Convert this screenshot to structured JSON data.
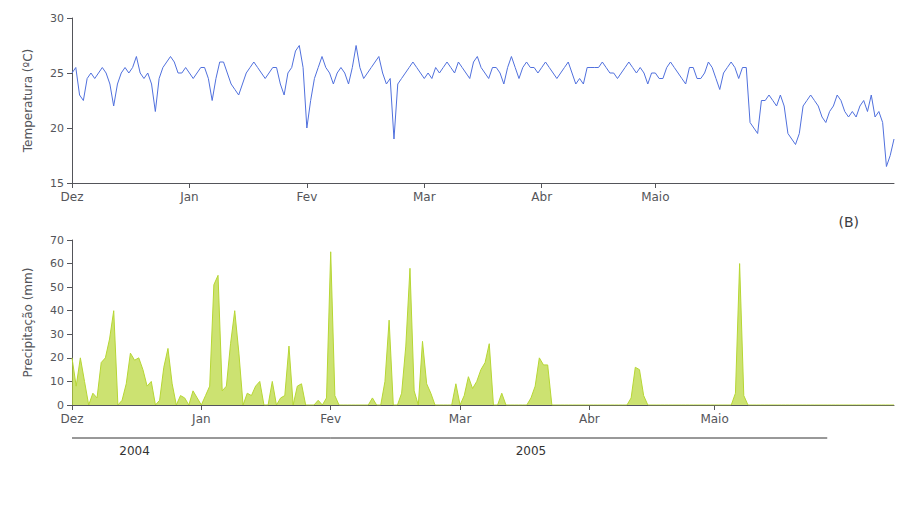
{
  "chart_data": [
    {
      "type": "line",
      "ylabel": "Temperatura (ºC)",
      "ylim": [
        15,
        30
      ],
      "yticks": [
        15,
        20,
        25,
        30
      ],
      "grid": false,
      "categories": [
        "Dez",
        null,
        null,
        null,
        null,
        null,
        null,
        null,
        null,
        null,
        null,
        null,
        null,
        null,
        null,
        null,
        null,
        null,
        null,
        null,
        null,
        null,
        null,
        null,
        null,
        null,
        null,
        null,
        null,
        null,
        null,
        "Jan",
        null,
        null,
        null,
        null,
        null,
        null,
        null,
        null,
        null,
        null,
        null,
        null,
        null,
        null,
        null,
        null,
        null,
        null,
        null,
        null,
        null,
        null,
        null,
        null,
        null,
        null,
        null,
        null,
        null,
        null,
        "Fev",
        null,
        null,
        null,
        null,
        null,
        null,
        null,
        null,
        null,
        null,
        null,
        null,
        null,
        null,
        null,
        null,
        null,
        null,
        null,
        null,
        null,
        null,
        null,
        null,
        null,
        null,
        null,
        null,
        null,
        null,
        "Mar",
        null,
        null,
        null,
        null,
        null,
        null,
        null,
        null,
        null,
        null,
        null,
        null,
        null,
        null,
        null,
        null,
        null,
        null,
        null,
        null,
        null,
        null,
        null,
        null,
        null,
        null,
        null,
        null,
        null,
        null,
        "Abr",
        null,
        null,
        null,
        null,
        null,
        null,
        null,
        null,
        null,
        null,
        null,
        null,
        null,
        null,
        null,
        null,
        null,
        null,
        null,
        null,
        null,
        null,
        null,
        null,
        null,
        null,
        null,
        null,
        null,
        "Maio",
        null,
        null,
        null,
        null,
        null,
        null,
        null,
        null,
        null,
        null,
        null,
        null,
        null,
        null,
        null,
        null,
        null,
        null,
        null,
        null,
        null,
        null,
        null,
        null,
        null,
        null,
        null,
        null,
        null,
        null,
        null,
        null,
        null,
        null,
        null,
        null,
        null,
        null,
        null,
        null,
        null,
        null,
        null,
        null,
        null,
        null,
        null,
        null,
        null,
        null,
        null,
        null,
        null,
        null,
        null,
        null,
        null,
        null,
        null,
        null,
        null,
        null,
        null
      ],
      "values": [
        25.0,
        25.5,
        23.0,
        22.5,
        24.5,
        25.0,
        24.5,
        25.0,
        25.5,
        25.0,
        24.0,
        22.0,
        24.0,
        25.0,
        25.5,
        25.0,
        25.5,
        26.5,
        25.0,
        24.5,
        25.0,
        24.0,
        21.5,
        24.5,
        25.5,
        26.0,
        26.5,
        26.0,
        25.0,
        25.0,
        25.5,
        25.0,
        24.5,
        25.0,
        25.5,
        25.5,
        24.5,
        22.5,
        24.5,
        26.0,
        26.0,
        25.0,
        24.0,
        23.5,
        23.0,
        24.0,
        25.0,
        25.5,
        26.0,
        25.5,
        25.0,
        24.5,
        25.0,
        25.5,
        25.5,
        24.0,
        23.0,
        25.0,
        25.5,
        27.0,
        27.5,
        25.5,
        20.0,
        22.5,
        24.5,
        25.5,
        26.5,
        25.5,
        25.0,
        24.0,
        25.0,
        25.5,
        25.0,
        24.0,
        25.5,
        27.5,
        25.5,
        24.5,
        25.0,
        25.5,
        26.0,
        26.5,
        25.0,
        24.0,
        24.5,
        19.0,
        24.0,
        24.5,
        25.0,
        25.5,
        26.0,
        25.5,
        25.0,
        24.5,
        25.0,
        24.5,
        25.5,
        25.0,
        25.5,
        26.0,
        25.5,
        25.0,
        26.0,
        25.5,
        25.0,
        24.5,
        26.0,
        26.5,
        25.5,
        25.0,
        24.5,
        25.5,
        25.5,
        25.0,
        24.0,
        25.5,
        26.5,
        25.5,
        24.5,
        25.5,
        26.0,
        25.5,
        25.5,
        25.0,
        25.5,
        26.0,
        25.5,
        25.0,
        24.5,
        25.0,
        25.5,
        26.0,
        25.0,
        24.0,
        24.5,
        24.0,
        25.5,
        25.5,
        25.5,
        25.5,
        26.0,
        25.5,
        25.0,
        25.0,
        24.5,
        25.0,
        25.5,
        26.0,
        25.5,
        25.0,
        25.5,
        25.0,
        24.0,
        25.0,
        25.0,
        24.5,
        24.5,
        25.5,
        26.0,
        25.5,
        25.0,
        24.5,
        24.0,
        25.5,
        25.5,
        24.5,
        24.5,
        25.0,
        26.0,
        25.5,
        24.5,
        23.5,
        25.0,
        25.5,
        26.0,
        25.5,
        24.5,
        25.5,
        25.5,
        20.5,
        20.0,
        19.5,
        22.5,
        22.5,
        23.0,
        22.5,
        22.0,
        23.0,
        22.0,
        19.5,
        19.0,
        18.5,
        19.5,
        22.0,
        22.5,
        23.0,
        22.5,
        22.0,
        21.0,
        20.5,
        21.5,
        22.0,
        23.0,
        22.5,
        21.5,
        21.0,
        21.5,
        21.0,
        22.0,
        22.5,
        21.5,
        23.0,
        21.0,
        21.5,
        20.5,
        16.5,
        17.5,
        19.0
      ]
    },
    {
      "type": "area",
      "title": "(B)",
      "ylabel": "Precipitação (mm)",
      "ylim": [
        0,
        70
      ],
      "yticks": [
        0,
        10,
        20,
        30,
        40,
        50,
        60,
        70
      ],
      "grid": false,
      "categories": [
        "Dez",
        null,
        null,
        null,
        null,
        null,
        null,
        null,
        null,
        null,
        null,
        null,
        null,
        null,
        null,
        null,
        null,
        null,
        null,
        null,
        null,
        null,
        null,
        null,
        null,
        null,
        null,
        null,
        null,
        null,
        null,
        "Jan",
        null,
        null,
        null,
        null,
        null,
        null,
        null,
        null,
        null,
        null,
        null,
        null,
        null,
        null,
        null,
        null,
        null,
        null,
        null,
        null,
        null,
        null,
        null,
        null,
        null,
        null,
        null,
        null,
        null,
        null,
        "Fev",
        null,
        null,
        null,
        null,
        null,
        null,
        null,
        null,
        null,
        null,
        null,
        null,
        null,
        null,
        null,
        null,
        null,
        null,
        null,
        null,
        null,
        null,
        null,
        null,
        null,
        null,
        null,
        null,
        null,
        null,
        "Mar",
        null,
        null,
        null,
        null,
        null,
        null,
        null,
        null,
        null,
        null,
        null,
        null,
        null,
        null,
        null,
        null,
        null,
        null,
        null,
        null,
        null,
        null,
        null,
        null,
        null,
        null,
        null,
        null,
        null,
        null,
        "Abr",
        null,
        null,
        null,
        null,
        null,
        null,
        null,
        null,
        null,
        null,
        null,
        null,
        null,
        null,
        null,
        null,
        null,
        null,
        null,
        null,
        null,
        null,
        null,
        null,
        null,
        null,
        null,
        null,
        null,
        "Maio",
        null,
        null,
        null,
        null,
        null,
        null,
        null,
        null,
        null,
        null,
        null,
        null,
        null,
        null,
        null,
        null,
        null,
        null,
        null,
        null,
        null,
        null,
        null,
        null,
        null,
        null,
        null,
        null,
        null,
        null,
        null,
        null,
        null,
        null,
        null,
        null,
        null,
        null,
        null,
        null,
        null,
        null,
        null
      ],
      "values": [
        20.0,
        8.0,
        20.0,
        10.0,
        0.0,
        5.0,
        3.0,
        18.0,
        20.0,
        28.0,
        40.0,
        0.0,
        2.0,
        9.0,
        22.0,
        19.0,
        20.0,
        15.0,
        8.0,
        10.0,
        0.0,
        2.0,
        16.0,
        24.0,
        9.0,
        0.0,
        4.0,
        3.0,
        0.0,
        6.0,
        3.0,
        0.0,
        4.0,
        8.0,
        51.0,
        55.0,
        6.0,
        8.0,
        26.0,
        40.0,
        22.0,
        0.0,
        5.0,
        4.0,
        8.0,
        10.0,
        0.0,
        0.0,
        10.0,
        0.0,
        3.0,
        4.0,
        25.0,
        0.0,
        8.0,
        9.0,
        0.0,
        0.0,
        0.0,
        2.0,
        0.0,
        3.0,
        65.0,
        4.0,
        0.0,
        0.0,
        0.0,
        0.0,
        0.0,
        0.0,
        0.0,
        0.0,
        3.0,
        0.0,
        0.0,
        10.0,
        36.0,
        0.0,
        0.0,
        5.0,
        25.0,
        58.0,
        6.0,
        0.0,
        27.0,
        9.0,
        5.0,
        0.0,
        0.0,
        0.0,
        0.0,
        0.0,
        9.0,
        0.0,
        4.0,
        12.0,
        7.0,
        10.0,
        15.0,
        18.0,
        26.0,
        0.0,
        0.0,
        5.0,
        0.0,
        0.0,
        0.0,
        0.0,
        0.0,
        0.0,
        3.0,
        8.0,
        20.0,
        17.0,
        17.0,
        0.0,
        0.0,
        0.0,
        0.0,
        0.0,
        0.0,
        0.0,
        0.0,
        0.0,
        0.0,
        0.0,
        0.0,
        0.0,
        0.0,
        0.0,
        0.0,
        0.0,
        0.0,
        0.0,
        3.0,
        16.0,
        15.0,
        4.0,
        0.0,
        0.0,
        0.0,
        0.0,
        0.0,
        0.0,
        0.0,
        0.0,
        0.0,
        0.0,
        0.0,
        0.0,
        0.0,
        0.0,
        0.0,
        0.0,
        0.0,
        0.0,
        0.0,
        0.0,
        0.0,
        5.0,
        60.0,
        4.0,
        0.0,
        0.0,
        0.0,
        0.0,
        0.0,
        0.0,
        0.0,
        0.0,
        0.0,
        0.0,
        0.0,
        0.0,
        0.0,
        0.0,
        0.0,
        0.0,
        0.0,
        0.0,
        0.0,
        0.0,
        0.0,
        0.0,
        0.0,
        0.0,
        0.0,
        0.0,
        0.0,
        0.0,
        0.0,
        0.0,
        0.0,
        0.0,
        0.0,
        0.0,
        0.0,
        0.0
      ],
      "annotations": [
        {
          "text": "2004",
          "x": 15,
          "line": [
            0,
            62
          ]
        },
        {
          "text": "2005",
          "x": 110,
          "line": [
            62,
            181
          ]
        }
      ]
    }
  ]
}
